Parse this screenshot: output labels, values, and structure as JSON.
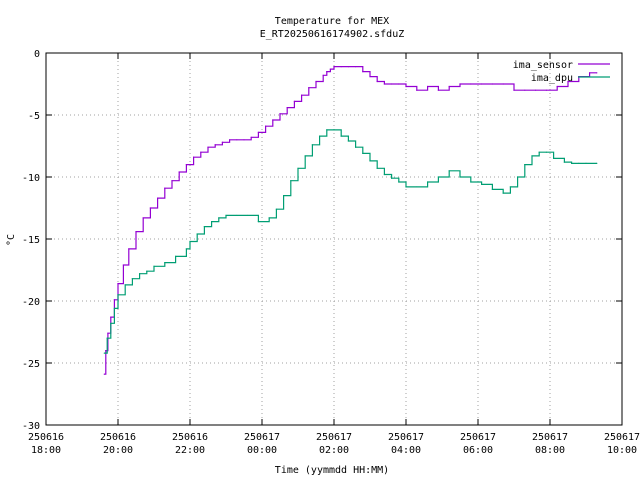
{
  "chart_data": {
    "type": "line",
    "title": "Temperature for MEX",
    "subtitle": "E_RT20250616174902.sfduZ",
    "xlabel": "Time (yymmdd HH:MM)",
    "ylabel": "°C",
    "x_unit": "hours",
    "xlim": [
      18,
      34
    ],
    "ylim": [
      -30,
      0
    ],
    "x_ticks": [
      {
        "x": 18,
        "date": "250616",
        "time": "18:00"
      },
      {
        "x": 20,
        "date": "250616",
        "time": "20:00"
      },
      {
        "x": 22,
        "date": "250616",
        "time": "22:00"
      },
      {
        "x": 24,
        "date": "250617",
        "time": "00:00"
      },
      {
        "x": 26,
        "date": "250617",
        "time": "02:00"
      },
      {
        "x": 28,
        "date": "250617",
        "time": "04:00"
      },
      {
        "x": 30,
        "date": "250617",
        "time": "06:00"
      },
      {
        "x": 32,
        "date": "250617",
        "time": "08:00"
      },
      {
        "x": 34,
        "date": "250617",
        "time": "10:00"
      }
    ],
    "y_ticks": [
      0,
      -5,
      -10,
      -15,
      -20,
      -25,
      -30
    ],
    "grid": true,
    "legend_position": "top-right",
    "series": [
      {
        "name": "ima_sensor",
        "color": "#9400d3",
        "x": [
          19.62,
          19.66,
          19.72,
          19.8,
          19.9,
          20.0,
          20.15,
          20.3,
          20.5,
          20.7,
          20.9,
          21.1,
          21.3,
          21.5,
          21.7,
          21.9,
          22.1,
          22.3,
          22.5,
          22.7,
          22.9,
          23.1,
          23.3,
          23.5,
          23.7,
          23.9,
          24.1,
          24.3,
          24.5,
          24.7,
          24.9,
          25.1,
          25.3,
          25.5,
          25.7,
          25.8,
          25.9,
          26.0,
          26.2,
          26.4,
          26.6,
          26.8,
          27.0,
          27.2,
          27.4,
          27.6,
          27.8,
          28.0,
          28.3,
          28.6,
          28.9,
          29.2,
          29.5,
          29.8,
          30.1,
          30.4,
          30.7,
          31.0,
          31.3,
          31.6,
          31.9,
          32.2,
          32.5,
          32.8,
          33.1,
          33.3
        ],
        "values": [
          -25.9,
          -24.0,
          -22.6,
          -21.3,
          -19.9,
          -18.6,
          -17.1,
          -15.8,
          -14.4,
          -13.3,
          -12.5,
          -11.7,
          -10.9,
          -10.3,
          -9.6,
          -9.0,
          -8.4,
          -8.0,
          -7.6,
          -7.4,
          -7.2,
          -7.0,
          -7.0,
          -7.0,
          -6.8,
          -6.4,
          -5.9,
          -5.4,
          -4.9,
          -4.4,
          -3.9,
          -3.4,
          -2.8,
          -2.3,
          -1.8,
          -1.5,
          -1.3,
          -1.1,
          -1.1,
          -1.1,
          -1.1,
          -1.5,
          -1.9,
          -2.3,
          -2.5,
          -2.5,
          -2.5,
          -2.7,
          -3.0,
          -2.7,
          -3.0,
          -2.7,
          -2.5,
          -2.5,
          -2.5,
          -2.5,
          -2.5,
          -3.0,
          -3.0,
          -3.0,
          -3.0,
          -2.7,
          -2.3,
          -1.9,
          -1.6,
          -1.6
        ]
      },
      {
        "name": "ima_dpu",
        "color": "#009e73",
        "x": [
          19.62,
          19.7,
          19.8,
          19.9,
          20.0,
          20.2,
          20.4,
          20.6,
          20.8,
          21.0,
          21.3,
          21.6,
          21.9,
          22.0,
          22.2,
          22.4,
          22.6,
          22.8,
          23.0,
          23.3,
          23.6,
          23.9,
          24.2,
          24.4,
          24.6,
          24.8,
          25.0,
          25.2,
          25.4,
          25.6,
          25.8,
          26.0,
          26.2,
          26.4,
          26.6,
          26.8,
          27.0,
          27.2,
          27.4,
          27.6,
          27.8,
          28.0,
          28.3,
          28.6,
          28.9,
          29.2,
          29.5,
          29.8,
          30.1,
          30.4,
          30.7,
          30.9,
          31.1,
          31.3,
          31.5,
          31.7,
          31.9,
          32.1,
          32.4,
          32.6,
          32.8,
          33.0,
          33.3
        ],
        "values": [
          -24.2,
          -23.0,
          -21.8,
          -20.6,
          -19.5,
          -18.7,
          -18.2,
          -17.8,
          -17.6,
          -17.2,
          -16.9,
          -16.4,
          -15.8,
          -15.2,
          -14.6,
          -14.0,
          -13.6,
          -13.3,
          -13.1,
          -13.1,
          -13.1,
          -13.6,
          -13.3,
          -12.6,
          -11.5,
          -10.3,
          -9.3,
          -8.3,
          -7.4,
          -6.7,
          -6.2,
          -6.2,
          -6.7,
          -7.1,
          -7.6,
          -8.1,
          -8.7,
          -9.3,
          -9.8,
          -10.1,
          -10.4,
          -10.8,
          -10.8,
          -10.4,
          -10.0,
          -9.5,
          -10.0,
          -10.4,
          -10.6,
          -11.0,
          -11.3,
          -10.8,
          -10.0,
          -9.0,
          -8.3,
          -8.0,
          -8.0,
          -8.5,
          -8.8,
          -8.9,
          -8.9,
          -8.9,
          -8.9
        ]
      }
    ]
  }
}
